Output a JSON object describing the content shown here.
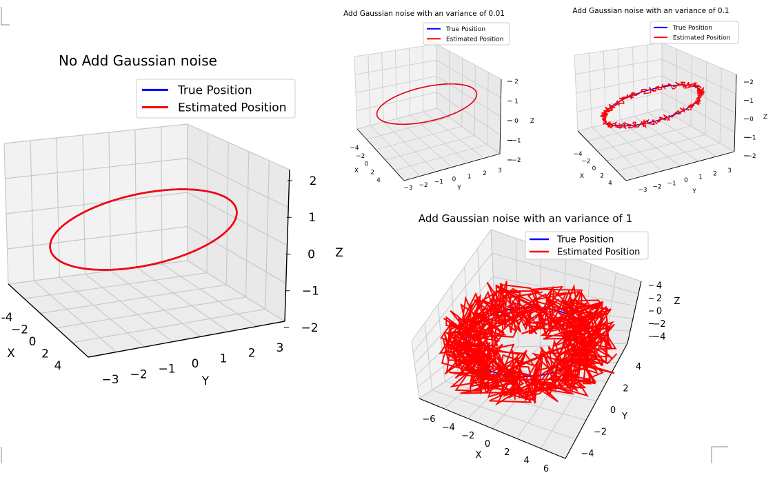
{
  "colors": {
    "true_position": "#0000ff",
    "estimated_position": "#ff0000",
    "grid": "#c8c8c8",
    "pane": "#f2f2f2",
    "axis": "#000000"
  },
  "legend": {
    "true_label": "True Position",
    "estimated_label": "Estimated Position"
  },
  "chart_data": [
    {
      "id": "main",
      "type": "line3d",
      "title": "No Add Gaussian noise",
      "noise_variance": 0,
      "legend_position": "upper-right",
      "series": [
        {
          "name": "True Position",
          "color": "#0000ff",
          "shape": "ellipse",
          "x_radius": 3,
          "y_radius": 2,
          "z_amplitude": 1.2
        },
        {
          "name": "Estimated Position",
          "color": "#ff0000",
          "shape": "ellipse",
          "x_radius": 3,
          "y_radius": 2,
          "z_amplitude": 1.2
        }
      ],
      "axes": {
        "xlabel": "X",
        "ylabel": "Y",
        "zlabel": "Z",
        "xticks": [
          "-4",
          "−2",
          "0",
          "2",
          "4"
        ],
        "yticks": [
          "−3",
          "−2",
          "−1",
          "0",
          "1",
          "2",
          "3"
        ],
        "zticks": [
          "2",
          "1",
          "0",
          "−1",
          "−2"
        ]
      }
    },
    {
      "id": "var001",
      "type": "line3d",
      "title": "Add Gaussian noise with an variance of 0.01",
      "noise_variance": 0.01,
      "legend_position": "upper-right",
      "series": [
        {
          "name": "True Position",
          "color": "#0000ff",
          "shape": "ellipse",
          "x_radius": 3,
          "y_radius": 2,
          "z_amplitude": 1.2
        },
        {
          "name": "Estimated Position",
          "color": "#ff0000",
          "shape": "ellipse",
          "x_radius": 3,
          "y_radius": 2,
          "z_amplitude": 1.2
        }
      ],
      "axes": {
        "xlabel": "X",
        "ylabel": "Y",
        "zlabel": "Z",
        "xticks": [
          "−4",
          "−2",
          "0",
          "2",
          "4"
        ],
        "yticks": [
          "−3",
          "−2",
          "−1",
          "0",
          "1",
          "2",
          "3"
        ],
        "zticks": [
          "2",
          "1",
          "0",
          "−1",
          "−2"
        ]
      }
    },
    {
      "id": "var01",
      "type": "line3d",
      "title": "Add Gaussian noise with an variance of 0.1",
      "noise_variance": 0.1,
      "legend_position": "upper-right",
      "series": [
        {
          "name": "True Position",
          "color": "#0000ff",
          "shape": "ellipse",
          "x_radius": 3,
          "y_radius": 2,
          "z_amplitude": 1.2
        },
        {
          "name": "Estimated Position",
          "color": "#ff0000",
          "shape": "noisy-ellipse",
          "x_radius": 3,
          "y_radius": 2,
          "z_amplitude": 1.2
        }
      ],
      "axes": {
        "xlabel": "X",
        "ylabel": "Y",
        "zlabel": "Z",
        "xticks": [
          "−4",
          "−2",
          "0",
          "2",
          "4"
        ],
        "yticks": [
          "−3",
          "−2",
          "−1",
          "0",
          "1",
          "2",
          "3"
        ],
        "zticks": [
          "2",
          "1",
          "0",
          "−1",
          "−2"
        ]
      }
    },
    {
      "id": "var1",
      "type": "line3d",
      "title": "Add Gaussian noise with an variance of 1",
      "noise_variance": 1,
      "legend_position": "upper-right",
      "series": [
        {
          "name": "True Position",
          "color": "#0000ff",
          "shape": "ellipse",
          "x_radius": 3,
          "y_radius": 2,
          "z_amplitude": 1.2
        },
        {
          "name": "Estimated Position",
          "color": "#ff0000",
          "shape": "noisy-ellipse",
          "x_radius": 3,
          "y_radius": 2,
          "z_amplitude": 1.2
        }
      ],
      "axes": {
        "xlabel": "X",
        "ylabel": "Y",
        "zlabel": "Z",
        "xticks": [
          "−6",
          "−4",
          "−2",
          "0",
          "2",
          "4",
          "6"
        ],
        "yticks": [
          "4",
          "2",
          "0",
          "−2",
          "−4"
        ],
        "zticks": [
          "4",
          "2",
          "0",
          "−2",
          "−4"
        ]
      }
    }
  ]
}
